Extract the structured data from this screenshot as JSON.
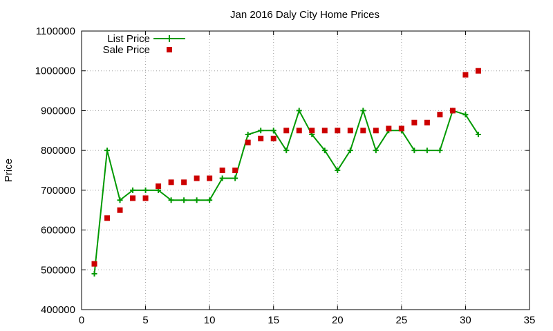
{
  "chart_data": {
    "type": "line",
    "title": "Jan 2016 Daly City Home Prices",
    "xlabel": "",
    "ylabel": "Price",
    "xlim": [
      0,
      35
    ],
    "ylim": [
      400000,
      1100000
    ],
    "xticks": [
      0,
      5,
      10,
      15,
      20,
      25,
      30,
      35
    ],
    "yticks": [
      400000,
      500000,
      600000,
      700000,
      800000,
      900000,
      1000000,
      1100000
    ],
    "grid": true,
    "legend_position": "top-left",
    "series": [
      {
        "name": "List Price",
        "style": "line+cross",
        "color": "#009900",
        "x": [
          1,
          2,
          3,
          4,
          5,
          6,
          7,
          8,
          9,
          10,
          11,
          12,
          13,
          14,
          15,
          16,
          17,
          18,
          19,
          20,
          21,
          22,
          23,
          24,
          25,
          26,
          27,
          28,
          29,
          30,
          31
        ],
        "values": [
          490000,
          800000,
          675000,
          700000,
          700000,
          700000,
          675000,
          675000,
          675000,
          675000,
          730000,
          730000,
          840000,
          850000,
          850000,
          800000,
          900000,
          840000,
          800000,
          750000,
          800000,
          900000,
          800000,
          850000,
          850000,
          800000,
          800000,
          800000,
          900000,
          890000,
          840000
        ]
      },
      {
        "name": "Sale Price",
        "style": "square-points",
        "color": "#cc0000",
        "x": [
          1,
          2,
          3,
          4,
          5,
          6,
          7,
          8,
          9,
          10,
          11,
          12,
          13,
          14,
          15,
          16,
          17,
          18,
          19,
          20,
          21,
          22,
          23,
          24,
          25,
          26,
          27,
          28,
          29,
          30,
          31
        ],
        "values": [
          515000,
          630000,
          650000,
          680000,
          680000,
          710000,
          720000,
          720000,
          730000,
          730000,
          750000,
          750000,
          820000,
          830000,
          830000,
          850000,
          850000,
          850000,
          850000,
          850000,
          850000,
          850000,
          850000,
          855000,
          855000,
          870000,
          870000,
          890000,
          900000,
          990000,
          1000000
        ]
      }
    ]
  }
}
